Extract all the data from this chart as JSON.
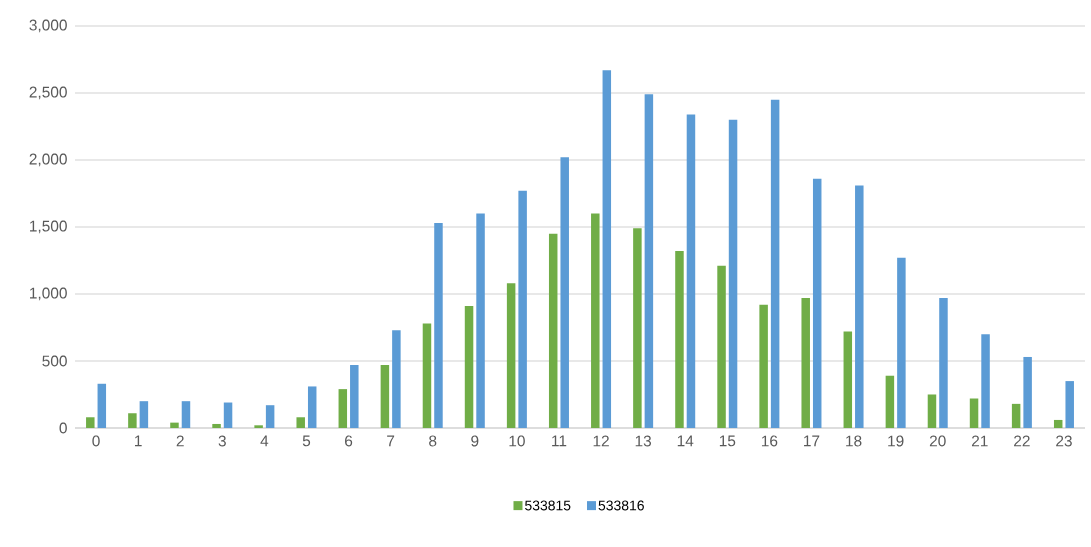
{
  "chart_data": {
    "type": "bar",
    "categories": [
      "0",
      "1",
      "2",
      "3",
      "4",
      "5",
      "6",
      "7",
      "8",
      "9",
      "10",
      "11",
      "12",
      "13",
      "14",
      "15",
      "16",
      "17",
      "18",
      "19",
      "20",
      "21",
      "22",
      "23"
    ],
    "series": [
      {
        "name": "533815",
        "color": "#70ad47",
        "values": [
          80,
          110,
          40,
          30,
          20,
          80,
          290,
          470,
          780,
          910,
          1080,
          1450,
          1600,
          1490,
          1320,
          1210,
          920,
          970,
          720,
          390,
          250,
          220,
          180,
          60
        ]
      },
      {
        "name": "533816",
        "color": "#5b9bd5",
        "values": [
          330,
          200,
          200,
          190,
          170,
          310,
          470,
          730,
          1530,
          1600,
          1770,
          2020,
          2670,
          2490,
          2340,
          2300,
          2450,
          1860,
          1810,
          1270,
          970,
          700,
          530,
          350
        ]
      }
    ],
    "ylim": [
      0,
      3000
    ],
    "yticks": [
      0,
      {
        "value": 500,
        "label": "500"
      },
      {
        "value": 1000,
        "label": "1,000"
      },
      {
        "value": 1500,
        "label": "1,500"
      },
      {
        "value": 2000,
        "label": "2,000"
      },
      {
        "value": 2500,
        "label": "2,500"
      },
      {
        "value": 3000,
        "label": "3,000"
      }
    ],
    "grid": "y",
    "legend": "bottom"
  }
}
